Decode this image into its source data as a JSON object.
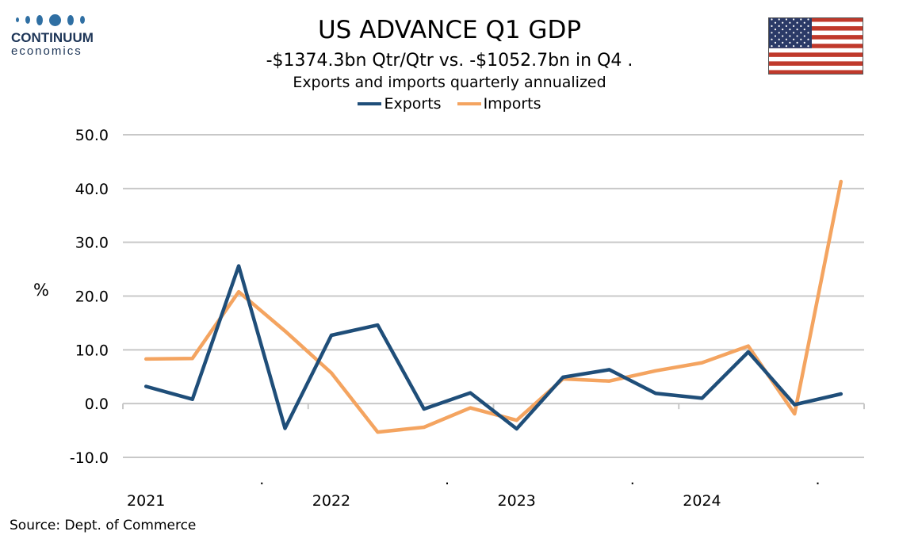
{
  "logo": {
    "name": "CONTINUUM",
    "sub": "economics"
  },
  "header": {
    "title": "US ADVANCE Q1 GDP",
    "subtitle": "-$1374.3bn Qtr/Qtr vs. -$1052.7bn in Q4 .",
    "subtitle2": "Exports and imports quarterly annualized"
  },
  "source": "Source: Dept. of Commerce",
  "colors": {
    "exports": "#1f4e79",
    "imports": "#f4a460",
    "grid": "#c8c8c8"
  },
  "chart_data": {
    "type": "line",
    "title": "Exports and imports quarterly annualized",
    "ylabel": "%",
    "ylim": [
      -10,
      50
    ],
    "yticks": [
      -10,
      0,
      10,
      20,
      30,
      40,
      50
    ],
    "ytick_labels": [
      "-10.0",
      "0.0",
      "10.0",
      "20.0",
      "30.0",
      "40.0",
      "50.0"
    ],
    "x_labels": [
      {
        "index": 0,
        "label": "2021"
      },
      {
        "index": 2.5,
        "label": "."
      },
      {
        "index": 4,
        "label": "2022"
      },
      {
        "index": 6.5,
        "label": "."
      },
      {
        "index": 8,
        "label": "2023"
      },
      {
        "index": 10.5,
        "label": "."
      },
      {
        "index": 12,
        "label": "2024"
      },
      {
        "index": 14.5,
        "label": "."
      }
    ],
    "legend": "top-center",
    "grid": true,
    "series": [
      {
        "name": "Exports",
        "values": [
          3.2,
          0.8,
          25.6,
          -4.6,
          12.7,
          14.6,
          -1.0,
          2.0,
          -4.7,
          4.9,
          6.3,
          1.9,
          1.0,
          9.6,
          -0.2,
          1.8
        ]
      },
      {
        "name": "Imports",
        "values": [
          8.3,
          8.4,
          20.8,
          13.5,
          5.7,
          -5.3,
          -4.4,
          -0.8,
          -3.1,
          4.6,
          4.2,
          6.1,
          7.6,
          10.7,
          -1.9,
          41.3
        ]
      }
    ]
  }
}
